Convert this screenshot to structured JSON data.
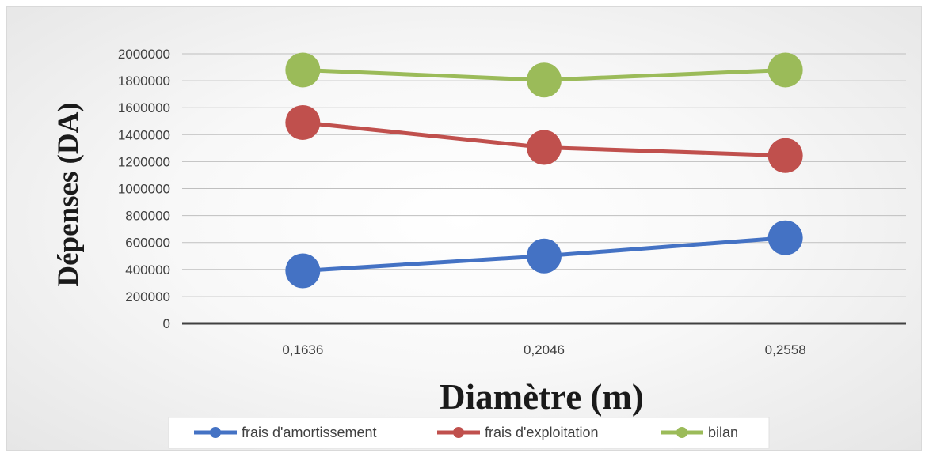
{
  "chart_data": {
    "type": "line",
    "categories": [
      "0,1636",
      "0,2046",
      "0,2558"
    ],
    "series": [
      {
        "name": "frais d'amortissement",
        "color": "#4472c4",
        "values": [
          390000,
          500000,
          635000
        ]
      },
      {
        "name": "frais d'exploitation",
        "color": "#c0504d",
        "values": [
          1490000,
          1305000,
          1245000
        ]
      },
      {
        "name": "bilan",
        "color": "#9bbb59",
        "values": [
          1880000,
          1805000,
          1880000
        ]
      }
    ],
    "y_ticks": [
      "0",
      "200000",
      "400000",
      "600000",
      "800000",
      "1000000",
      "1200000",
      "1400000",
      "1600000",
      "1800000",
      "2000000"
    ],
    "ylim": [
      0,
      2000000
    ],
    "xlabel": "Diamètre (m)",
    "ylabel": "Dépenses (DA)",
    "grid": true,
    "legend_position": "bottom"
  }
}
